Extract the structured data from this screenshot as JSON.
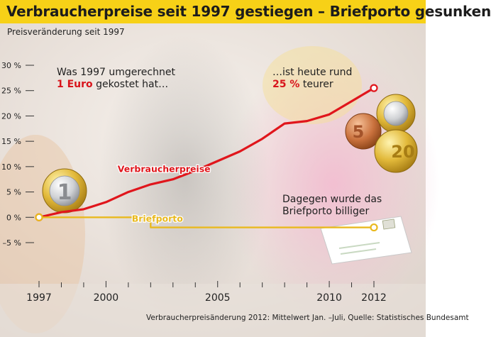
{
  "header": {
    "title": "Verbraucherpreise seit 1997 gestiegen – Briefporto gesunken",
    "subtitle": "Preisveränderung seit 1997"
  },
  "annotations": {
    "left_line1": "Was 1997 umgerechnet",
    "left_highlight": "1 Euro",
    "left_line2_rest": "gekostet hat…",
    "right_line1": "…ist heute rund",
    "right_highlight": "25 %",
    "right_line2_rest": "teurer",
    "postage_line1": "Dagegen wurde das",
    "postage_line2": "Briefporto billiger"
  },
  "footnote": "Verbraucherpreisänderung 2012: Mittelwert Jan. –Juli, Quelle: Statistisches Bundesamt",
  "colors": {
    "title_bar": "#f7d117",
    "consumer_prices": "#e0161c",
    "postage": "#e9b91e",
    "axis_text": "#222222",
    "background": "#ede7e2"
  },
  "chart_data": {
    "type": "line",
    "x_range": [
      1997,
      2012
    ],
    "ylim": [
      -5,
      30
    ],
    "y_ticks": [
      30,
      25,
      20,
      15,
      10,
      5,
      0,
      -5
    ],
    "y_tick_labels": [
      "30 %",
      "25 %",
      "20 %",
      "15 %",
      "10 %",
      "5 %",
      "0 %",
      "–5 %"
    ],
    "x_ticks": [
      1997,
      2000,
      2005,
      2010,
      2012
    ],
    "x_tick_labels": [
      "1997",
      "2000",
      "2005",
      "2010",
      "2012"
    ],
    "grid": false,
    "series": [
      {
        "name": "Verbraucherpreise",
        "color": "#e0161c",
        "x": [
          1997,
          1998,
          1999,
          2000,
          2001,
          2002,
          2003,
          2004,
          2005,
          2006,
          2007,
          2008,
          2009,
          2010,
          2011,
          2012
        ],
        "values": [
          0,
          1,
          1.6,
          3,
          5,
          6.5,
          7.5,
          9.2,
          11.1,
          13,
          15.5,
          18.5,
          19,
          20.3,
          22.9,
          25.5
        ]
      },
      {
        "name": "Briefporto",
        "color": "#e9b91e",
        "x": [
          1997,
          2002,
          2002,
          2012
        ],
        "values": [
          0,
          0,
          -2,
          -2
        ]
      }
    ]
  }
}
